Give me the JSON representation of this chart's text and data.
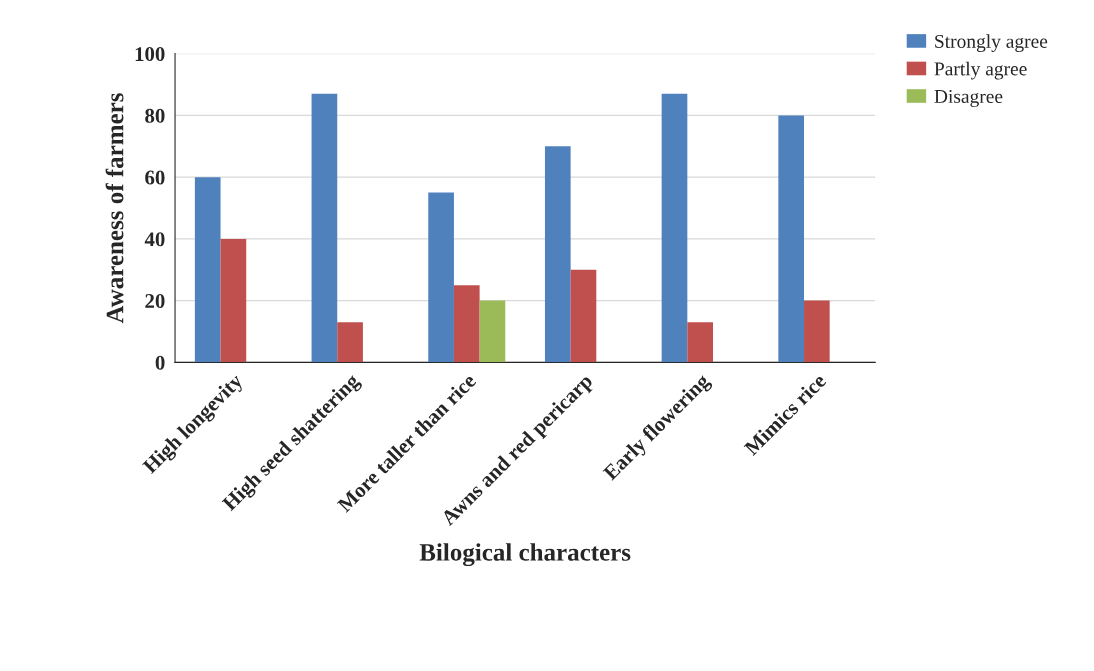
{
  "chart_data": {
    "type": "bar",
    "xlabel": "Bilogical characters",
    "ylabel": "Awareness of farmers",
    "categories": [
      "High longevity",
      "High seed shattering",
      "More taller than rice",
      "Awns and red pericarp",
      "Early flowering",
      "Mimics rice"
    ],
    "series": [
      {
        "name": "Strongly agree",
        "color": "#4f81bd",
        "values": [
          60,
          87,
          55,
          70,
          87,
          80
        ]
      },
      {
        "name": "Partly agree",
        "color": "#c0504d",
        "values": [
          40,
          13,
          25,
          30,
          13,
          20
        ]
      },
      {
        "name": "Disagree",
        "color": "#9bbb59",
        "values": [
          0,
          0,
          20,
          0,
          0,
          0
        ]
      }
    ],
    "ylim": [
      0,
      100
    ],
    "yticks": [
      0,
      20,
      40,
      60,
      80,
      100
    ],
    "grid": "y",
    "legend": "top right"
  }
}
